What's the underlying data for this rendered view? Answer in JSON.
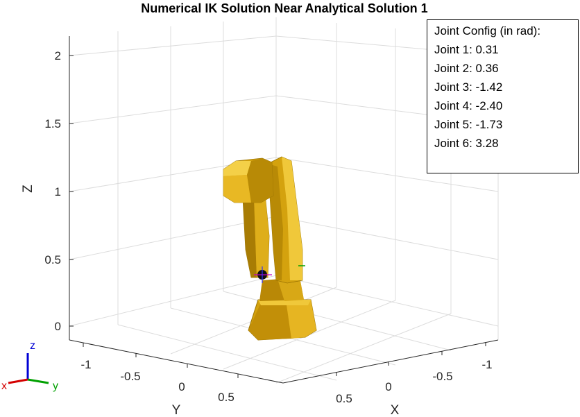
{
  "figure": {
    "title": "Numerical IK Solution Near Analytical Solution 1",
    "axes": {
      "z_label": "Z",
      "y_label": "Y",
      "x_label": "X",
      "z_ticks": [
        "0",
        "0.5",
        "1",
        "1.5",
        "2"
      ],
      "y_ticks": [
        "-1",
        "-0.5",
        "0",
        "0.5"
      ],
      "x_ticks": [
        "0.5",
        "0",
        "-0.5",
        "-1"
      ]
    },
    "triad": {
      "x": "x",
      "y": "y",
      "z": "z"
    }
  },
  "joint_info": {
    "heading": "Joint Config (in rad):",
    "lines": [
      "Joint 1: 0.31",
      "Joint 2: 0.36",
      "Joint 3: -1.42",
      "Joint 4: -2.40",
      "Joint 5: -1.73",
      "Joint 6: 3.28"
    ]
  },
  "colors": {
    "robot": "#d4a20e",
    "robot_dark": "#9a7404",
    "robot_light": "#f0c83a",
    "grid": "#dcdcdc",
    "axis": "#262626",
    "triad_x": "#d40000",
    "triad_y": "#00a000",
    "triad_z": "#0000d4"
  }
}
